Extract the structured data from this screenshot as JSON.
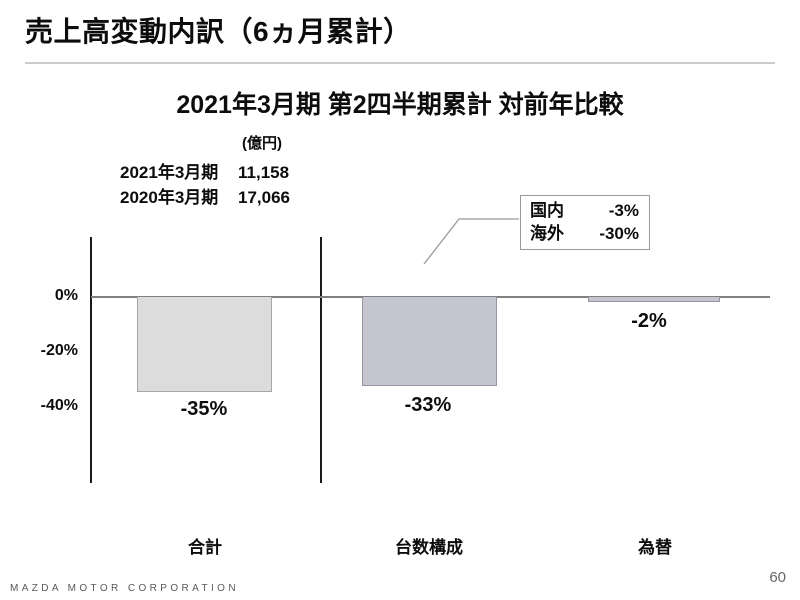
{
  "slide": {
    "title": "売上高変動内訳（6ヵ月累計）",
    "footer": "MAZDA MOTOR CORPORATION",
    "page_number": "60"
  },
  "chart": {
    "title": "2021年3月期 第2四半期累計 対前年比較",
    "unit_label": "(億円)",
    "reference_values": [
      {
        "label": "2021年3月期",
        "value": "11,158"
      },
      {
        "label": "2020年3月期",
        "value": "17,066"
      }
    ]
  },
  "chart_data": {
    "type": "bar",
    "title": "2021年3月期 第2四半期累計 対前年比較",
    "categories": [
      "合計",
      "台数構成",
      "為替"
    ],
    "values": [
      -35,
      -33,
      -2
    ],
    "value_labels": [
      "-35%",
      "-33%",
      "-2%"
    ],
    "unit": "%",
    "y_ticks": [
      {
        "value": 0,
        "label": "0%"
      },
      {
        "value": -20,
        "label": "-20%"
      },
      {
        "value": -40,
        "label": "-40%"
      }
    ],
    "ylim": [
      -70,
      22
    ],
    "grid": false,
    "legend": false,
    "bar_colors": [
      "#dcdcdc",
      "#c5c5cf",
      "#c5c5cf"
    ],
    "axis_color": "#1a1a1a",
    "zero_line_color": "#808080",
    "annotation": {
      "target_category": "台数構成",
      "rows": [
        {
          "label": "国内",
          "value": "-3%"
        },
        {
          "label": "海外",
          "value": "-30%"
        }
      ]
    }
  }
}
